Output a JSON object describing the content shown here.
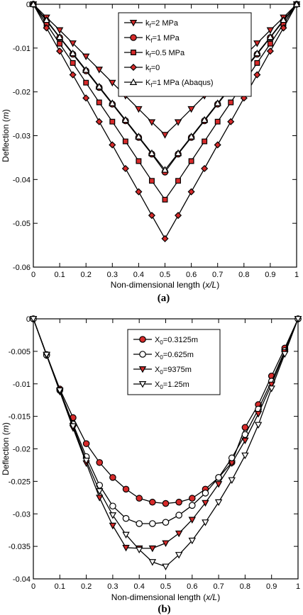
{
  "chart_data": [
    {
      "type": "line",
      "panel_label": "(a)",
      "xlabel": "Non-dimensional length (x/L)",
      "ylabel": "Deflection (m)",
      "xlim": [
        0,
        1
      ],
      "ylim": [
        -0.06,
        0
      ],
      "x_ticks": [
        "0",
        "0.1",
        "0.2",
        "0.3",
        "0.4",
        "0.5",
        "0.6",
        "0.7",
        "0.8",
        "0.9",
        "1"
      ],
      "y_ticks": [
        "0",
        "-0.01",
        "-0.02",
        "-0.03",
        "-0.04",
        "-0.05",
        "-0.06"
      ],
      "x_tick_values": [
        0,
        0.1,
        0.2,
        0.3,
        0.4,
        0.5,
        0.6,
        0.7,
        0.8,
        0.9,
        1
      ],
      "y_tick_values": [
        0,
        -0.01,
        -0.02,
        -0.03,
        -0.04,
        -0.05,
        -0.06
      ],
      "legend_position": "top-center",
      "grid": false,
      "x": [
        0,
        0.05,
        0.1,
        0.15,
        0.2,
        0.25,
        0.3,
        0.35,
        0.4,
        0.45,
        0.5,
        0.55,
        0.6,
        0.65,
        0.7,
        0.75,
        0.8,
        0.85,
        0.9,
        0.95,
        1
      ],
      "series": [
        {
          "name": "kf=2 MPa",
          "legend_label": {
            "base": "k",
            "sub": "f",
            "rest": "=2 MPa"
          },
          "marker": "triangle-down",
          "fill": "#d62a2a",
          "values": [
            0,
            -0.003,
            -0.0059,
            -0.0089,
            -0.0119,
            -0.0149,
            -0.0179,
            -0.0209,
            -0.0239,
            -0.0269,
            -0.0298,
            -0.0269,
            -0.0239,
            -0.0209,
            -0.0179,
            -0.0149,
            -0.0119,
            -0.0089,
            -0.0059,
            -0.003,
            0
          ]
        },
        {
          "name": "Kf=1 MPa",
          "legend_label": {
            "base": "K",
            "sub": "f",
            "rest": "=1 MPa"
          },
          "marker": "circle",
          "fill": "#d62a2a",
          "values": [
            0,
            -0.0038,
            -0.0076,
            -0.0114,
            -0.0152,
            -0.019,
            -0.0228,
            -0.0266,
            -0.0304,
            -0.0342,
            -0.0383,
            -0.0342,
            -0.0304,
            -0.0266,
            -0.0228,
            -0.019,
            -0.0152,
            -0.0114,
            -0.0076,
            -0.0038,
            0
          ]
        },
        {
          "name": "kf=0.5 MPa",
          "legend_label": {
            "base": "k",
            "sub": "f",
            "rest": "=0.5 MPa"
          },
          "marker": "square",
          "fill": "#d62a2a",
          "values": [
            0,
            -0.0045,
            -0.009,
            -0.0134,
            -0.0179,
            -0.0224,
            -0.0268,
            -0.0313,
            -0.0358,
            -0.0403,
            -0.0446,
            -0.0403,
            -0.0358,
            -0.0313,
            -0.0268,
            -0.0224,
            -0.0179,
            -0.0134,
            -0.009,
            -0.0045,
            0
          ]
        },
        {
          "name": "kf=0",
          "legend_label": {
            "base": "k",
            "sub": "f",
            "rest": "=0"
          },
          "marker": "diamond",
          "fill": "#d62a2a",
          "values": [
            0,
            -0.0054,
            -0.0107,
            -0.0161,
            -0.0214,
            -0.0268,
            -0.0321,
            -0.0375,
            -0.0428,
            -0.0482,
            -0.0535,
            -0.0482,
            -0.0428,
            -0.0375,
            -0.0321,
            -0.0268,
            -0.0214,
            -0.0161,
            -0.0107,
            -0.0054,
            0
          ]
        },
        {
          "name": "Kf=1 MPa (Abaqus)",
          "legend_label": {
            "base": "K",
            "sub": "f",
            "rest": "=1 MPa (Abaqus)"
          },
          "marker": "triangle-up",
          "fill": "#ffffff",
          "values": [
            0,
            -0.0036,
            -0.0075,
            -0.0112,
            -0.015,
            -0.0188,
            -0.0226,
            -0.0264,
            -0.0302,
            -0.034,
            -0.0378,
            -0.034,
            -0.0302,
            -0.0264,
            -0.0226,
            -0.0188,
            -0.015,
            -0.0112,
            -0.0075,
            -0.0036,
            0
          ]
        }
      ]
    },
    {
      "type": "line",
      "panel_label": "(b)",
      "xlabel": "Non-dimensional length (x/L)",
      "ylabel": "Deflection (m)",
      "xlim": [
        0,
        1
      ],
      "ylim": [
        -0.04,
        0
      ],
      "x_ticks": [
        "0",
        "0.1",
        "0.2",
        "0.3",
        "0.4",
        "0.5",
        "0.6",
        "0.7",
        "0.8",
        "0.9",
        "1"
      ],
      "y_ticks": [
        "0",
        "-0.005",
        "-0.01",
        "-0.015",
        "-0.02",
        "-0.025",
        "-0.03",
        "-0.035",
        "-0.04"
      ],
      "x_tick_values": [
        0,
        0.1,
        0.2,
        0.3,
        0.4,
        0.5,
        0.6,
        0.7,
        0.8,
        0.9,
        1
      ],
      "y_tick_values": [
        0,
        -0.005,
        -0.01,
        -0.015,
        -0.02,
        -0.025,
        -0.03,
        -0.035,
        -0.04
      ],
      "legend_position": "top-center",
      "grid": false,
      "x": [
        0,
        0.05,
        0.1,
        0.15,
        0.2,
        0.25,
        0.3,
        0.35,
        0.4,
        0.45,
        0.5,
        0.55,
        0.6,
        0.65,
        0.7,
        0.75,
        0.8,
        0.85,
        0.9,
        0.95,
        1
      ],
      "series": [
        {
          "name": "X0=0.3125m",
          "legend_label": {
            "base": "X",
            "sub": "0",
            "rest": "=0.3125m"
          },
          "marker": "circle",
          "fill": "#d62a2a",
          "values": [
            0,
            -0.0055,
            -0.0108,
            -0.0152,
            -0.0192,
            -0.0221,
            -0.0244,
            -0.0262,
            -0.0276,
            -0.0282,
            -0.0284,
            -0.0282,
            -0.0276,
            -0.0262,
            -0.0244,
            -0.0221,
            -0.0167,
            -0.0132,
            -0.0088,
            -0.0045,
            0
          ]
        },
        {
          "name": "X0=0.625m",
          "legend_label": {
            "base": "X",
            "sub": "0",
            "rest": "=0.625m"
          },
          "marker": "circle",
          "fill": "#ffffff",
          "values": [
            0,
            -0.0056,
            -0.011,
            -0.0162,
            -0.0212,
            -0.0256,
            -0.0288,
            -0.0307,
            -0.0315,
            -0.0315,
            -0.0313,
            -0.0302,
            -0.0287,
            -0.0268,
            -0.0244,
            -0.0214,
            -0.0178,
            -0.0139,
            -0.0096,
            -0.0049,
            0
          ]
        },
        {
          "name": "X0=9375m",
          "legend_label": {
            "base": "X",
            "sub": "0",
            "rest": "=9375m"
          },
          "marker": "triangle-down",
          "fill": "#d62a2a",
          "values": [
            0,
            -0.0056,
            -0.0112,
            -0.0168,
            -0.0222,
            -0.0275,
            -0.0318,
            -0.0352,
            -0.0353,
            -0.0353,
            -0.0345,
            -0.033,
            -0.0309,
            -0.0283,
            -0.0254,
            -0.0222,
            -0.0187,
            -0.0146,
            -0.0101,
            -0.0051,
            0
          ]
        },
        {
          "name": "X0=1.25m",
          "legend_label": {
            "base": "X",
            "sub": "0",
            "rest": "=1.25m"
          },
          "marker": "triangle-down",
          "fill": "#ffffff",
          "values": [
            0,
            -0.0055,
            -0.011,
            -0.0165,
            -0.0218,
            -0.0265,
            -0.0302,
            -0.0332,
            -0.0355,
            -0.0374,
            -0.0381,
            -0.0363,
            -0.0341,
            -0.0313,
            -0.0282,
            -0.0248,
            -0.021,
            -0.0163,
            -0.0107,
            -0.0054,
            0
          ]
        }
      ]
    }
  ]
}
